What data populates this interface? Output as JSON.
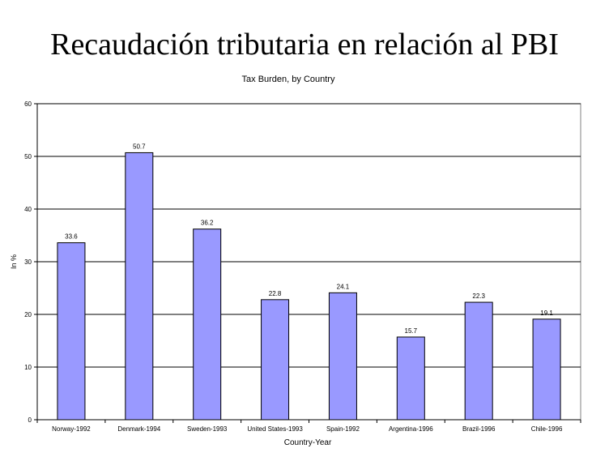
{
  "slide": {
    "title": "Recaudación tributaria en relación al PBI"
  },
  "chart_data": {
    "type": "bar",
    "title": "Tax Burden, by Country",
    "xlabel": "Country-Year",
    "ylabel": "In %",
    "ylim": [
      0,
      60
    ],
    "yticks": [
      0,
      10,
      20,
      30,
      40,
      50,
      60
    ],
    "grid": true,
    "legend": "none",
    "categories": [
      "Norway-1992",
      "Denmark-1994",
      "Sweden-1993",
      "United States-1993",
      "Spain-1992",
      "Argentina-1996",
      "Brazil-1996",
      "Chile-1996"
    ],
    "values": [
      33.6,
      50.7,
      36.2,
      22.8,
      24.1,
      15.7,
      22.3,
      19.1
    ],
    "value_labels": [
      "33.6",
      "50.7",
      "36.2",
      "22.8",
      "24.1",
      "15.7",
      "22.3",
      "19.1"
    ],
    "colors": {
      "bar": "#9999ff",
      "bar_border": "#000000",
      "grid": "#000000"
    }
  }
}
